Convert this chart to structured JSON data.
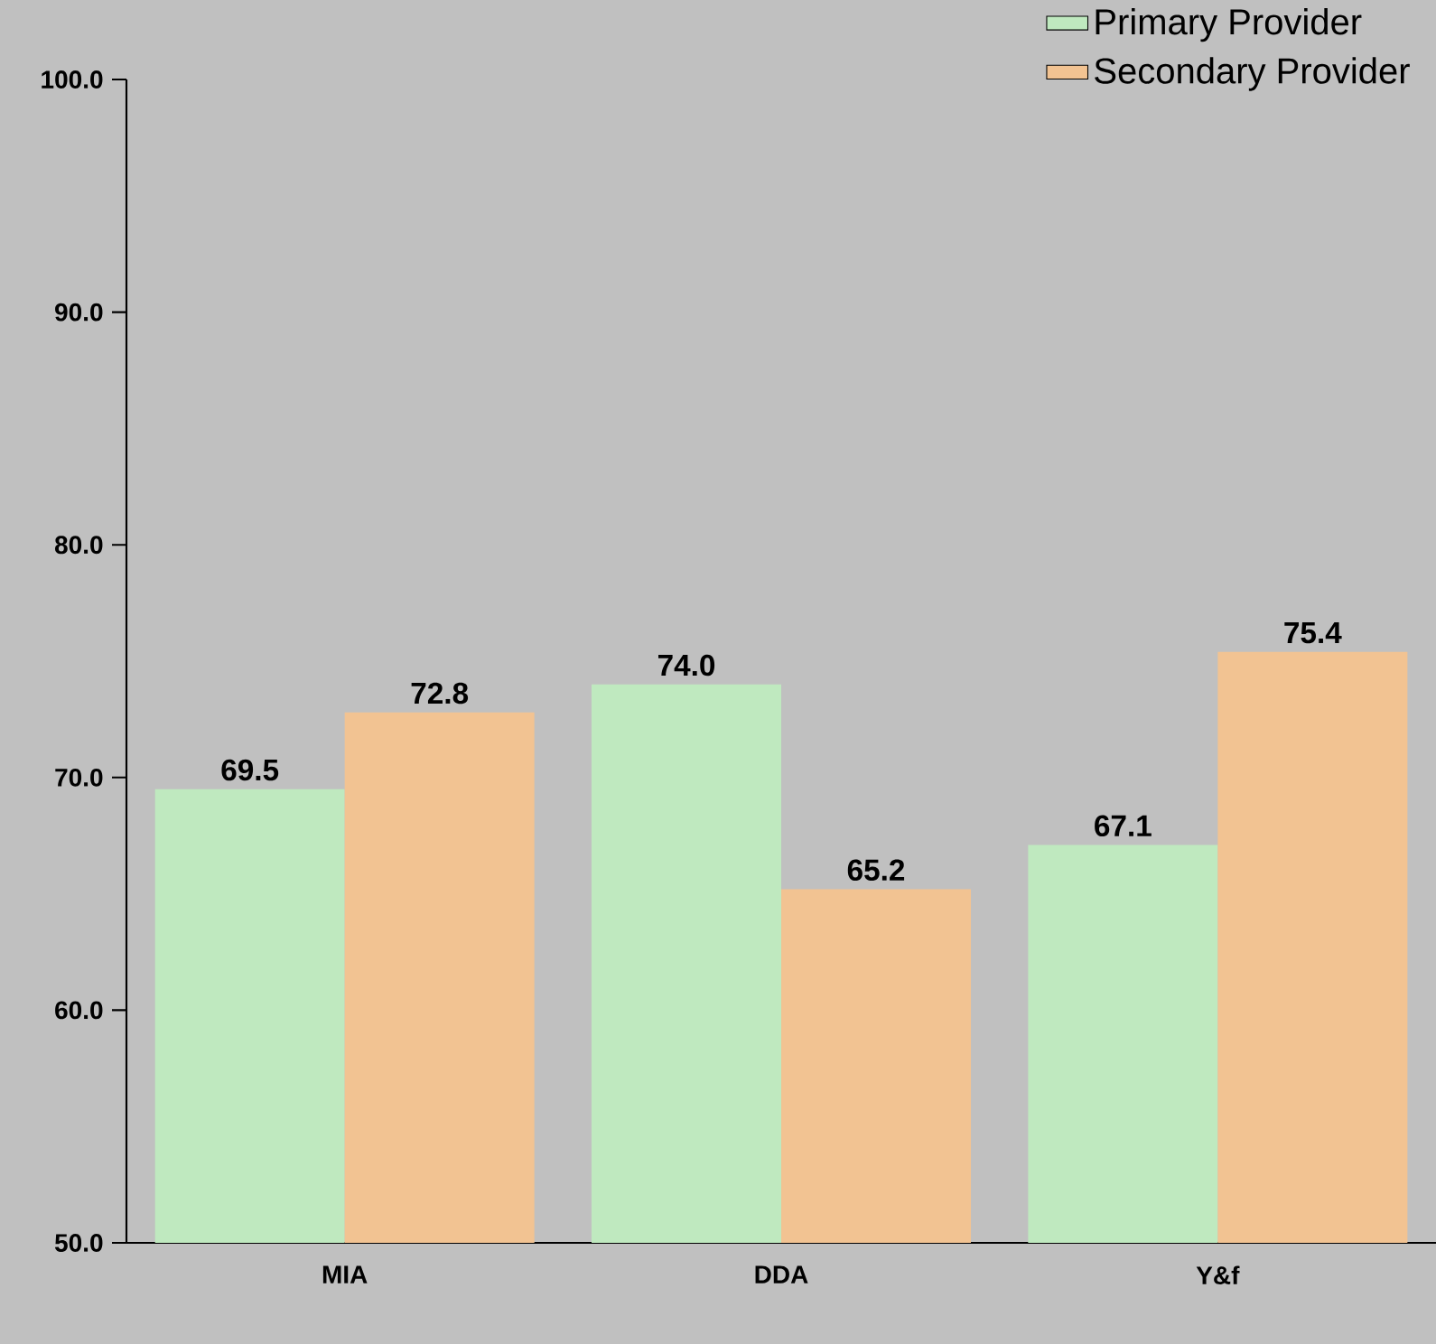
{
  "chart_data": {
    "type": "bar",
    "categories": [
      "MIA",
      "DDA",
      "Y&f"
    ],
    "series": [
      {
        "name": "Primary Provider",
        "color": "#bfe9bf",
        "values": [
          69.5,
          74.0,
          67.1
        ],
        "value_labels": [
          "69.5",
          "74.0",
          "67.1"
        ]
      },
      {
        "name": "Secondary Provider",
        "color": "#f2c392",
        "values": [
          72.8,
          65.2,
          75.4
        ],
        "value_labels": [
          "72.8",
          "65.2",
          "75.4"
        ]
      }
    ],
    "ylim": [
      50,
      100
    ],
    "yticks": [
      {
        "value": 50,
        "label": "50.0"
      },
      {
        "value": 60,
        "label": "60.0"
      },
      {
        "value": 70,
        "label": "70.0"
      },
      {
        "value": 80,
        "label": "80.0"
      },
      {
        "value": 90,
        "label": "90.0"
      },
      {
        "value": 100,
        "label": "100.0"
      }
    ],
    "grid": false,
    "legend": "top right"
  }
}
